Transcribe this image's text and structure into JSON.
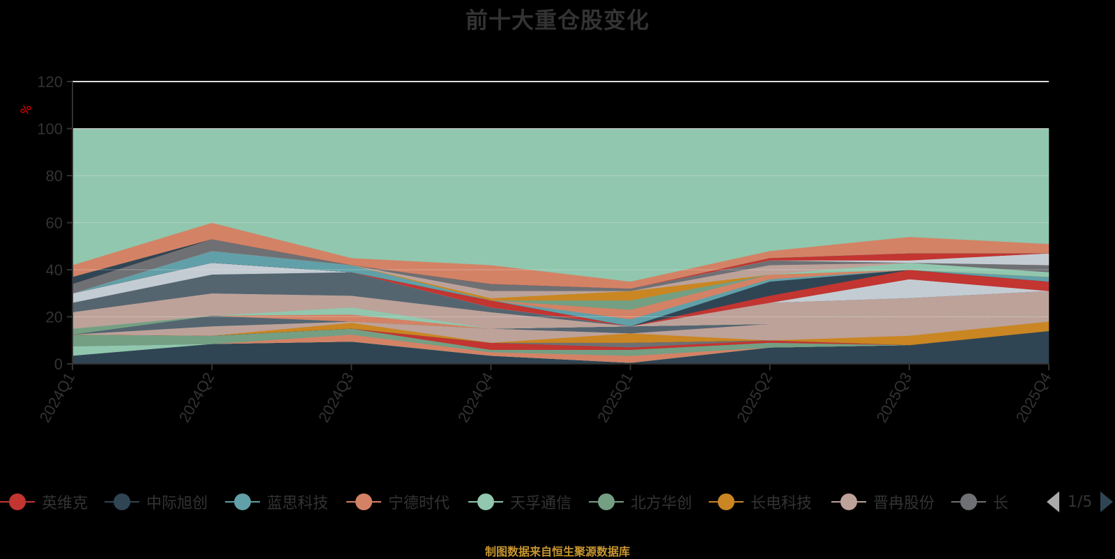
{
  "title": "前十大重仓股变化",
  "source": "制图数据来自恒生聚源数据库",
  "legend": {
    "items": [
      {
        "label": "英维克",
        "color": "#c23531"
      },
      {
        "label": "中际旭创",
        "color": "#2f4554"
      },
      {
        "label": "蓝思科技",
        "color": "#61a0a8"
      },
      {
        "label": "宁德时代",
        "color": "#d48265"
      },
      {
        "label": "天孚通信",
        "color": "#91c7ae"
      },
      {
        "label": "北方华创",
        "color": "#749f83"
      },
      {
        "label": "长电科技",
        "color": "#ca8622"
      },
      {
        "label": "晋冉股份",
        "color": "#bda29a"
      },
      {
        "label": "长",
        "color": "#6e7074"
      }
    ],
    "page": "1/5"
  },
  "chart_data": {
    "type": "area",
    "stacked": true,
    "title": "前十大重仓股变化",
    "xlabel": "",
    "ylabel": "%",
    "ylim": [
      0,
      120
    ],
    "yticks": [
      0,
      20,
      40,
      60,
      80,
      100,
      120
    ],
    "grid": true,
    "legend_position": "bottom",
    "categories": [
      "2024Q1",
      "2024Q2",
      "2024Q3",
      "2024Q4",
      "2025Q1",
      "2025Q2",
      "2025Q3",
      "2025Q4"
    ],
    "layers": [
      {
        "color": "#2f4554",
        "top": [
          3.5,
          8.5,
          9.5,
          3.5,
          0.5,
          7,
          8,
          14
        ]
      },
      {
        "color": "#91c7ae",
        "top": [
          7.5,
          8.5,
          9.5,
          3.5,
          0.5,
          7,
          8,
          14
        ]
      },
      {
        "color": "#d48265",
        "top": [
          7.5,
          8.5,
          12.5,
          5,
          3.5,
          7,
          8,
          14
        ]
      },
      {
        "color": "#61a0a8",
        "top": [
          7.5,
          8.5,
          12.5,
          5,
          3.5,
          7,
          8,
          14
        ]
      },
      {
        "color": "#749f83",
        "top": [
          12.5,
          12,
          15,
          6,
          6,
          9,
          8,
          14
        ]
      },
      {
        "color": "#c23531",
        "top": [
          12.5,
          12,
          15,
          9,
          7,
          10,
          8,
          14
        ]
      },
      {
        "color": "#6e7074",
        "top": [
          12.5,
          12,
          15,
          9,
          9,
          10,
          8,
          14
        ]
      },
      {
        "color": "#2f4554",
        "top": [
          12.5,
          12,
          15,
          9,
          9,
          10,
          8,
          14
        ]
      },
      {
        "color": "#ca8622",
        "top": [
          12.5,
          12,
          17.5,
          9,
          13,
          10,
          12,
          18
        ]
      },
      {
        "color": "#bda29a",
        "top": [
          12.5,
          16,
          18,
          15,
          13,
          17,
          23,
          20
        ]
      },
      {
        "color": "#546570",
        "top": [
          12.5,
          20.5,
          18,
          15,
          16,
          17,
          23,
          20
        ]
      },
      {
        "color": "#749f83",
        "top": [
          15,
          20.5,
          18,
          15,
          16,
          17,
          23,
          20
        ]
      },
      {
        "color": "#d48265",
        "top": [
          15,
          20.5,
          21,
          15,
          16,
          17,
          23,
          20
        ]
      },
      {
        "color": "#91c7ae",
        "top": [
          15,
          20.5,
          24,
          15,
          16,
          17,
          23,
          20
        ]
      },
      {
        "color": "#bda29a",
        "top": [
          22,
          30,
          29,
          22,
          16,
          26,
          28,
          31
        ]
      },
      {
        "color": "#546570",
        "top": [
          26,
          38,
          39,
          24,
          16,
          26,
          28,
          31
        ]
      },
      {
        "color": "#c4ccd3",
        "top": [
          30,
          43,
          39,
          24,
          16,
          26,
          36,
          31
        ]
      },
      {
        "color": "#c23531",
        "top": [
          30,
          43,
          39,
          27,
          16,
          29,
          40,
          35
        ]
      },
      {
        "color": "#2f4554",
        "top": [
          30,
          43,
          39,
          27,
          16,
          35,
          40,
          35
        ]
      },
      {
        "color": "#61a0a8",
        "top": [
          30,
          48,
          42,
          27,
          19,
          36,
          40,
          37
        ]
      },
      {
        "color": "#d48265",
        "top": [
          30,
          48,
          42,
          27,
          23,
          38,
          40,
          37
        ]
      },
      {
        "color": "#749f83",
        "top": [
          30,
          48,
          42,
          27,
          27,
          38,
          40,
          37
        ]
      },
      {
        "color": "#ca8622",
        "top": [
          30,
          48,
          42,
          28,
          31,
          38,
          40,
          37
        ]
      },
      {
        "color": "#91c7ae",
        "top": [
          30,
          48,
          42,
          28,
          31,
          38,
          43,
          39
        ]
      },
      {
        "color": "#bda29a",
        "top": [
          30,
          48,
          42,
          31,
          31,
          42,
          43,
          39
        ]
      },
      {
        "color": "#6e7074",
        "top": [
          34,
          53,
          42,
          34,
          32,
          44,
          43,
          42
        ]
      },
      {
        "color": "#c4ccd3",
        "top": [
          34,
          53,
          42,
          34,
          32,
          44,
          44,
          47
        ]
      },
      {
        "color": "#c23531",
        "top": [
          34,
          53,
          42,
          34,
          32,
          45,
          47,
          47
        ]
      },
      {
        "color": "#2f4554",
        "top": [
          37,
          53,
          42,
          34,
          32,
          45,
          47,
          47
        ]
      },
      {
        "color": "#d48265",
        "top": [
          42,
          60,
          45,
          42,
          35,
          48,
          54,
          51
        ]
      },
      {
        "color": "#91c7ae",
        "top": [
          100,
          100,
          100,
          100,
          100,
          100,
          100,
          100
        ]
      }
    ]
  }
}
